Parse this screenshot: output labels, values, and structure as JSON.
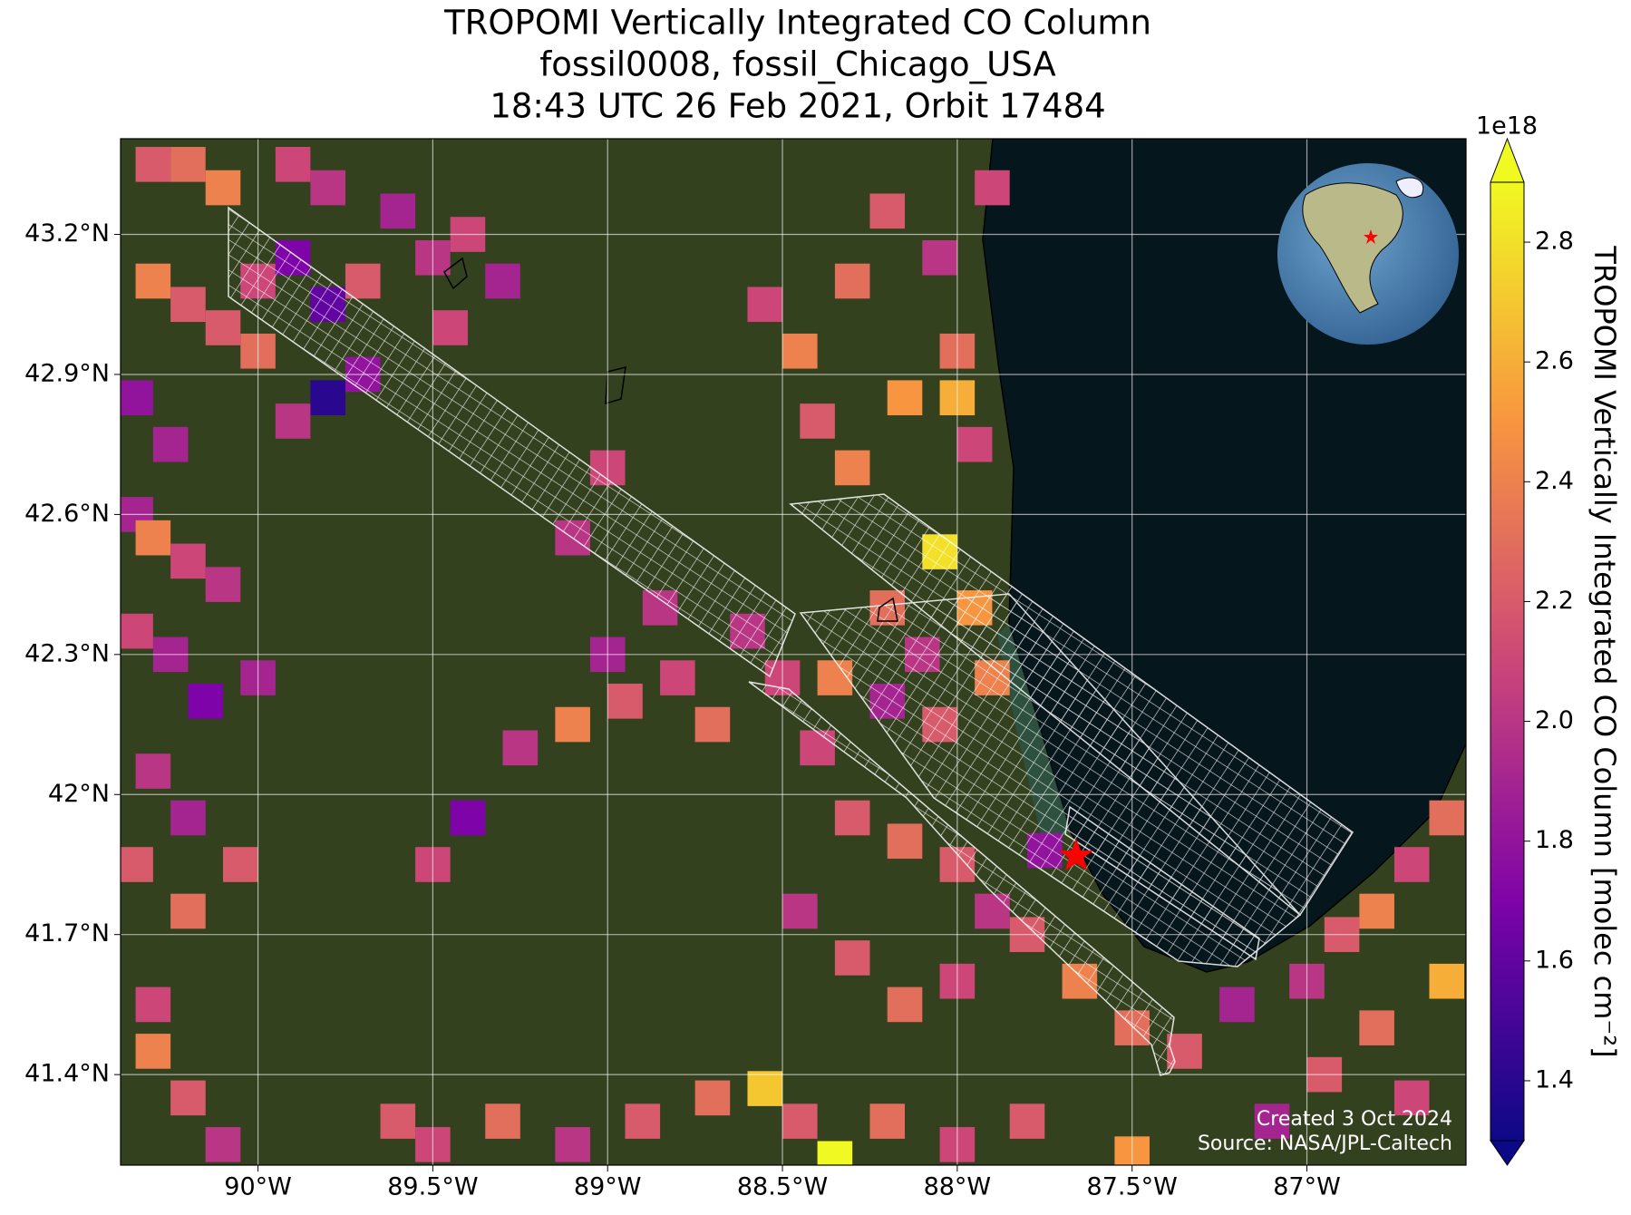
{
  "chart_data": {
    "type": "map_heatmap",
    "title": [
      "TROPOMI Vertically Integrated CO Column",
      "fossil0008, fossil_Chicago_USA",
      "18:43 UTC 26 Feb 2021, Orbit 17484"
    ],
    "xlim": [
      -90.393,
      -86.545
    ],
    "ylim": [
      41.206,
      43.405
    ],
    "xticks": [
      {
        "value": -90,
        "label": "90°W"
      },
      {
        "value": -89.5,
        "label": "89.5°W"
      },
      {
        "value": -89,
        "label": "89°W"
      },
      {
        "value": -88.5,
        "label": "88.5°W"
      },
      {
        "value": -88,
        "label": "88°W"
      },
      {
        "value": -87.5,
        "label": "87.5°W"
      },
      {
        "value": -87,
        "label": "87°W"
      }
    ],
    "yticks": [
      {
        "value": 41.4,
        "label": "41.4°N"
      },
      {
        "value": 41.7,
        "label": "41.7°N"
      },
      {
        "value": 42,
        "label": "42°N"
      },
      {
        "value": 42.3,
        "label": "42.3°N"
      },
      {
        "value": 42.6,
        "label": "42.6°N"
      },
      {
        "value": 42.9,
        "label": "42.9°N"
      },
      {
        "value": 43.2,
        "label": "43.2°N"
      }
    ],
    "grid": true,
    "colormap": "plasma",
    "colorbar": {
      "label": "TROPOMI Vertically Integrated CO Column [molec cm⁻²]",
      "scale_label": "1e18",
      "clim": [
        1.3,
        2.9
      ],
      "ticks": [
        1.4,
        1.6,
        1.8,
        {
          "value": 2,
          "label": "2.0"
        },
        2.2,
        2.4,
        2.6,
        2.8
      ]
    },
    "cells": [
      [
        -90.3,
        43.35,
        2.2
      ],
      [
        -90.2,
        43.35,
        2.3
      ],
      [
        -90.1,
        43.3,
        2.4
      ],
      [
        -89.9,
        43.35,
        2.1
      ],
      [
        -89.8,
        43.3,
        2.0
      ],
      [
        -89.6,
        43.25,
        1.9
      ],
      [
        -90.3,
        43.1,
        2.4
      ],
      [
        -90.2,
        43.05,
        2.2
      ],
      [
        -90.0,
        43.1,
        2.1
      ],
      [
        -89.9,
        43.15,
        1.7
      ],
      [
        -89.8,
        43.05,
        1.6
      ],
      [
        -89.7,
        43.1,
        2.2
      ],
      [
        -89.5,
        43.15,
        2.0
      ],
      [
        -89.4,
        43.2,
        2.1
      ],
      [
        -89.3,
        43.1,
        1.9
      ],
      [
        -89.45,
        43.0,
        2.1
      ],
      [
        -90.1,
        43.0,
        2.2
      ],
      [
        -90.0,
        42.95,
        2.3
      ],
      [
        -89.8,
        42.85,
        1.4
      ],
      [
        -89.7,
        42.9,
        1.8
      ],
      [
        -89.9,
        42.8,
        2.0
      ],
      [
        -90.35,
        42.85,
        1.8
      ],
      [
        -90.25,
        42.75,
        1.9
      ],
      [
        -90.35,
        42.6,
        1.9
      ],
      [
        -90.3,
        42.55,
        2.4
      ],
      [
        -90.2,
        42.5,
        2.1
      ],
      [
        -90.1,
        42.45,
        2.0
      ],
      [
        -90.35,
        42.35,
        2.1
      ],
      [
        -90.25,
        42.3,
        1.9
      ],
      [
        -90.15,
        42.2,
        1.7
      ],
      [
        -90.0,
        42.25,
        1.9
      ],
      [
        -90.3,
        42.05,
        2.0
      ],
      [
        -90.2,
        41.95,
        1.9
      ],
      [
        -90.35,
        41.85,
        2.2
      ],
      [
        -90.2,
        41.75,
        2.3
      ],
      [
        -90.05,
        41.85,
        2.2
      ],
      [
        -90.3,
        41.55,
        2.1
      ],
      [
        -90.3,
        41.45,
        2.4
      ],
      [
        -90.2,
        41.35,
        2.2
      ],
      [
        -90.1,
        41.25,
        2.0
      ],
      [
        -89.4,
        41.95,
        1.7
      ],
      [
        -89.5,
        41.85,
        2.1
      ],
      [
        -89.1,
        42.55,
        2.0
      ],
      [
        -89.0,
        42.7,
        2.1
      ],
      [
        -88.85,
        42.4,
        2.0
      ],
      [
        -89.0,
        42.3,
        1.9
      ],
      [
        -88.95,
        42.2,
        2.2
      ],
      [
        -88.8,
        42.25,
        2.1
      ],
      [
        -88.7,
        42.15,
        2.3
      ],
      [
        -89.1,
        42.15,
        2.4
      ],
      [
        -89.25,
        42.1,
        2.0
      ],
      [
        -88.6,
        42.35,
        2.0
      ],
      [
        -88.5,
        42.25,
        2.1
      ],
      [
        -88.55,
        43.05,
        2.1
      ],
      [
        -88.45,
        42.95,
        2.4
      ],
      [
        -88.3,
        43.1,
        2.3
      ],
      [
        -88.2,
        43.25,
        2.2
      ],
      [
        -88.05,
        43.15,
        2.0
      ],
      [
        -87.9,
        43.3,
        2.1
      ],
      [
        -88.4,
        42.8,
        2.2
      ],
      [
        -88.15,
        42.85,
        2.5
      ],
      [
        -88.0,
        42.95,
        2.3
      ],
      [
        -87.95,
        42.75,
        2.1
      ],
      [
        -88.0,
        42.85,
        2.6
      ],
      [
        -88.3,
        42.7,
        2.4
      ],
      [
        -88.05,
        42.52,
        2.8
      ],
      [
        -88.2,
        42.4,
        2.3
      ],
      [
        -88.1,
        42.3,
        2.0
      ],
      [
        -87.95,
        42.4,
        2.5
      ],
      [
        -88.35,
        42.25,
        2.4
      ],
      [
        -88.2,
        42.2,
        1.9
      ],
      [
        -88.05,
        42.15,
        2.2
      ],
      [
        -87.9,
        42.25,
        2.4
      ],
      [
        -88.4,
        42.1,
        2.1
      ],
      [
        -88.3,
        41.95,
        2.2
      ],
      [
        -88.15,
        41.9,
        2.3
      ],
      [
        -88.0,
        41.85,
        2.2
      ],
      [
        -87.75,
        41.88,
        1.8
      ],
      [
        -87.9,
        41.75,
        2.0
      ],
      [
        -88.45,
        41.75,
        2.0
      ],
      [
        -88.3,
        41.65,
        2.2
      ],
      [
        -88.15,
        41.55,
        2.3
      ],
      [
        -88.0,
        41.6,
        2.1
      ],
      [
        -87.8,
        41.7,
        2.2
      ],
      [
        -87.65,
        41.6,
        2.4
      ],
      [
        -87.5,
        41.5,
        2.3
      ],
      [
        -87.35,
        41.45,
        2.2
      ],
      [
        -87.2,
        41.55,
        1.9
      ],
      [
        -89.6,
        41.3,
        2.2
      ],
      [
        -89.5,
        41.25,
        2.1
      ],
      [
        -89.3,
        41.3,
        2.3
      ],
      [
        -89.1,
        41.25,
        2.0
      ],
      [
        -88.9,
        41.3,
        2.2
      ],
      [
        -88.7,
        41.35,
        2.3
      ],
      [
        -88.55,
        41.37,
        2.7
      ],
      [
        -88.45,
        41.3,
        2.2
      ],
      [
        -88.35,
        41.22,
        2.9
      ],
      [
        -88.2,
        41.3,
        2.3
      ],
      [
        -88.0,
        41.25,
        2.1
      ],
      [
        -87.8,
        41.3,
        2.2
      ],
      [
        -87.5,
        41.23,
        2.5
      ],
      [
        -87.0,
        41.6,
        2.0
      ],
      [
        -86.9,
        41.7,
        2.2
      ],
      [
        -86.8,
        41.75,
        2.4
      ],
      [
        -86.7,
        41.85,
        2.1
      ],
      [
        -86.6,
        41.95,
        2.3
      ],
      [
        -86.6,
        41.6,
        2.6
      ],
      [
        -86.8,
        41.5,
        2.3
      ],
      [
        -86.95,
        41.4,
        2.2
      ],
      [
        -86.7,
        41.35,
        2.1
      ],
      [
        -87.1,
        41.3,
        1.9
      ]
    ],
    "credits": [
      "Created 3 Oct 2024",
      "Source: NASA/JPL-Caltech"
    ]
  }
}
